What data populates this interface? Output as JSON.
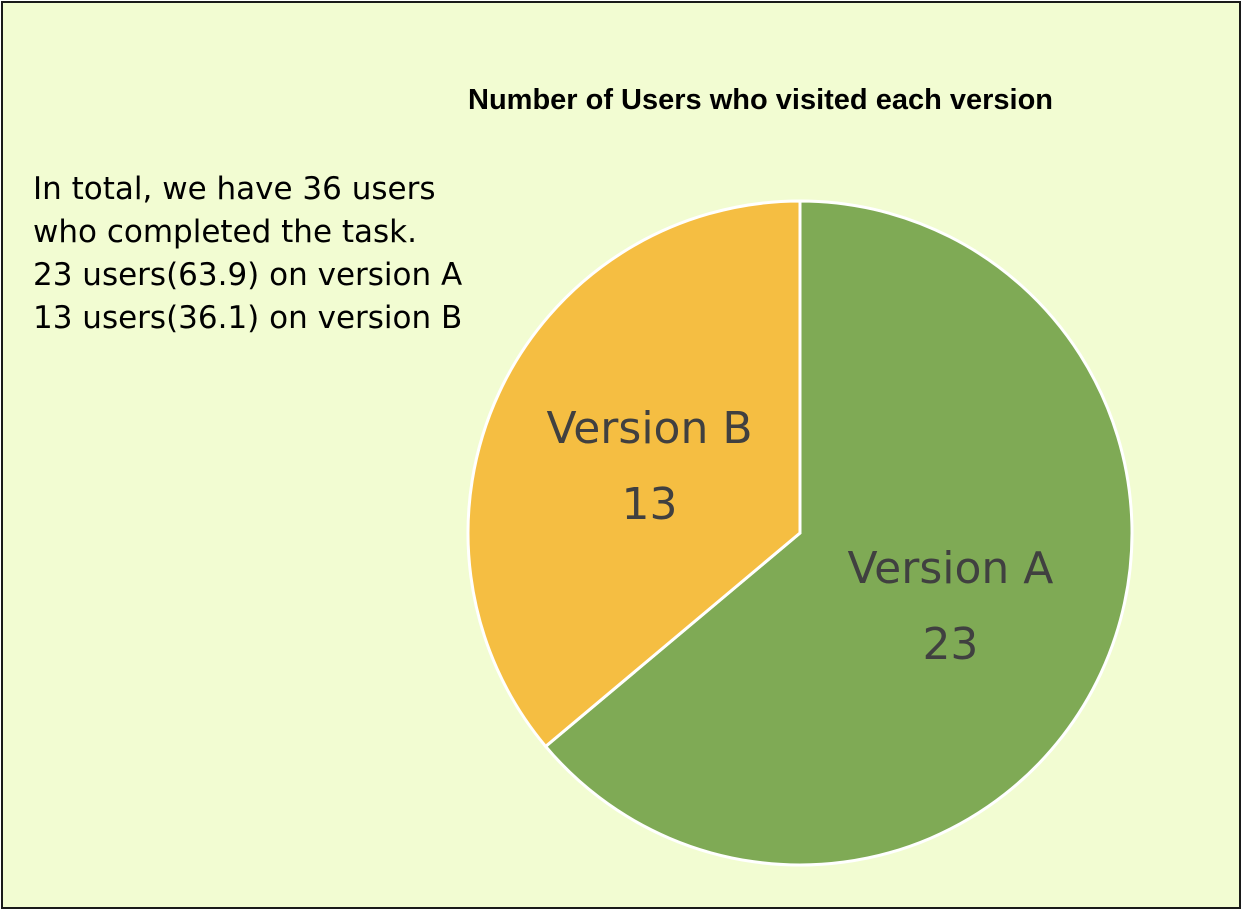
{
  "summary": {
    "lines": [
      "In total, we have 36 users",
      "who completed the task.",
      "23 users(63.9) on version A",
      "13 users(36.1) on version B"
    ]
  },
  "chart_data": {
    "type": "pie",
    "title": "Number of Users who visited each version",
    "categories": [
      "Version A",
      "Version B"
    ],
    "values": [
      23,
      13
    ],
    "colors": [
      "#7faa55",
      "#f5be42"
    ],
    "start": "12 o'clock, clockwise",
    "data_labels": "category name and value inside slice"
  }
}
